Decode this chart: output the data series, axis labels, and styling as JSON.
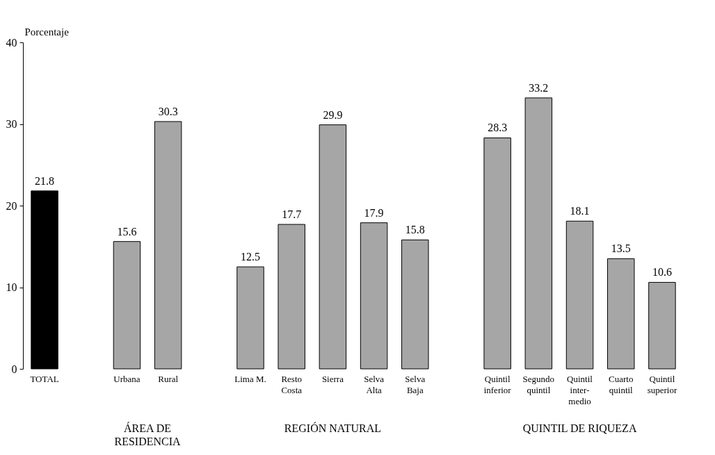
{
  "chart_data": {
    "type": "bar",
    "ylabel": "Porcentaje",
    "categories": [
      "TOTAL",
      null,
      "Urbana",
      "Rural",
      null,
      "Lima M.",
      "Resto\nCosta",
      "Sierra",
      "Selva\nAlta",
      "Selva\nBaja",
      null,
      "Quintil\ninferior",
      "Segundo\nquintil",
      "Quintil\ninter-\nmedio",
      "Cuarto\nquintil",
      "Quintil\nsuperior"
    ],
    "values": [
      21.8,
      null,
      15.6,
      30.3,
      null,
      12.5,
      17.7,
      29.9,
      17.9,
      15.8,
      null,
      28.3,
      33.2,
      18.1,
      13.5,
      10.6
    ],
    "colors": [
      "#000000",
      null,
      "#a6a6a6",
      "#a6a6a6",
      null,
      "#a6a6a6",
      "#a6a6a6",
      "#a6a6a6",
      "#a6a6a6",
      "#a6a6a6",
      null,
      "#a6a6a6",
      "#a6a6a6",
      "#a6a6a6",
      "#a6a6a6",
      "#a6a6a6"
    ],
    "ylim": [
      0,
      40
    ],
    "yticks": [
      0,
      10,
      20,
      30,
      40
    ],
    "grid": false,
    "data_labels": true,
    "annotations": [
      "ÁREA DE\nRESIDENCIA",
      "REGIÓN NATURAL",
      "QUINTIL DE RIQUEZA"
    ]
  }
}
